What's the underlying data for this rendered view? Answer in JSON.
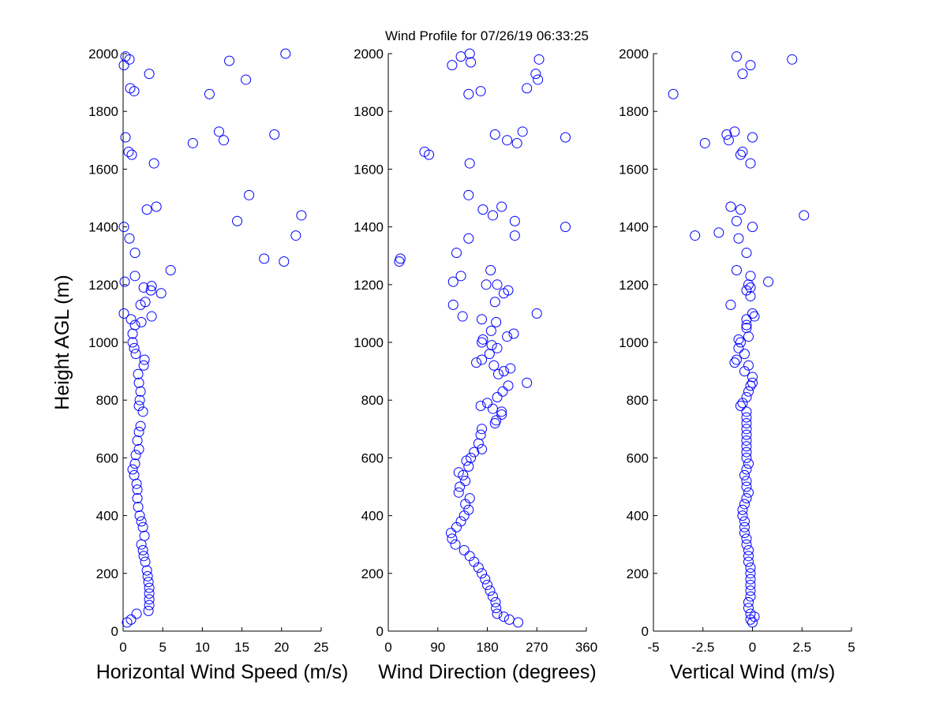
{
  "title": "Wind Profile for  07/26/19 06:33:25",
  "colors": {
    "marker": "#0000ff",
    "axis": "#000000",
    "background": "#ffffff"
  },
  "chart_data": [
    {
      "id": "speed",
      "type": "scatter",
      "xlabel": "Horizontal Wind Speed (m/s)",
      "ylabel": "Height AGL (m)",
      "xlim": [
        0,
        25
      ],
      "ylim": [
        0,
        2000
      ],
      "xticks": [
        0,
        5,
        10,
        15,
        20,
        25
      ],
      "xtick_labels": [
        "0",
        "5",
        "10",
        "15",
        "20",
        "25"
      ],
      "yticks": [
        0,
        200,
        400,
        600,
        800,
        1000,
        1200,
        1400,
        1600,
        1800,
        2000
      ],
      "ytick_labels": [
        "0",
        "200",
        "400",
        "600",
        "800",
        "1000",
        "1200",
        "1400",
        "1600",
        "1800",
        "2000"
      ],
      "grid": false,
      "points": [
        [
          0.5,
          30
        ],
        [
          1.0,
          40
        ],
        [
          1.7,
          60
        ],
        [
          3.2,
          70
        ],
        [
          3.3,
          90
        ],
        [
          3.3,
          110
        ],
        [
          3.3,
          130
        ],
        [
          3.3,
          150
        ],
        [
          3.2,
          170
        ],
        [
          3.1,
          190
        ],
        [
          3.0,
          210
        ],
        [
          2.8,
          240
        ],
        [
          2.6,
          260
        ],
        [
          2.5,
          280
        ],
        [
          2.3,
          300
        ],
        [
          2.7,
          330
        ],
        [
          2.5,
          360
        ],
        [
          2.3,
          380
        ],
        [
          2.1,
          400
        ],
        [
          1.9,
          430
        ],
        [
          1.8,
          460
        ],
        [
          1.8,
          490
        ],
        [
          1.7,
          510
        ],
        [
          1.4,
          540
        ],
        [
          1.2,
          560
        ],
        [
          1.5,
          580
        ],
        [
          1.6,
          610
        ],
        [
          2.0,
          630
        ],
        [
          1.8,
          660
        ],
        [
          2.0,
          690
        ],
        [
          2.2,
          710
        ],
        [
          2.5,
          760
        ],
        [
          2.0,
          780
        ],
        [
          2.1,
          800
        ],
        [
          2.2,
          830
        ],
        [
          2.0,
          860
        ],
        [
          1.9,
          890
        ],
        [
          2.6,
          920
        ],
        [
          2.7,
          940
        ],
        [
          1.6,
          960
        ],
        [
          1.4,
          980
        ],
        [
          1.2,
          1000
        ],
        [
          1.2,
          1030
        ],
        [
          1.5,
          1060
        ],
        [
          2.3,
          1070
        ],
        [
          1.0,
          1080
        ],
        [
          3.6,
          1090
        ],
        [
          0.1,
          1100
        ],
        [
          2.8,
          1140
        ],
        [
          2.2,
          1130
        ],
        [
          4.8,
          1170
        ],
        [
          3.5,
          1180
        ],
        [
          2.6,
          1190
        ],
        [
          3.6,
          1195
        ],
        [
          0.2,
          1210
        ],
        [
          1.5,
          1230
        ],
        [
          6.0,
          1250
        ],
        [
          20.3,
          1280
        ],
        [
          17.8,
          1290
        ],
        [
          1.5,
          1310
        ],
        [
          0.8,
          1360
        ],
        [
          21.8,
          1370
        ],
        [
          0.1,
          1400
        ],
        [
          14.4,
          1420
        ],
        [
          22.5,
          1440
        ],
        [
          3.0,
          1460
        ],
        [
          4.2,
          1470
        ],
        [
          15.9,
          1510
        ],
        [
          3.9,
          1620
        ],
        [
          1.1,
          1650
        ],
        [
          0.7,
          1660
        ],
        [
          8.8,
          1690
        ],
        [
          12.7,
          1700
        ],
        [
          0.3,
          1710
        ],
        [
          19.1,
          1720
        ],
        [
          12.1,
          1730
        ],
        [
          10.9,
          1860
        ],
        [
          1.4,
          1870
        ],
        [
          0.9,
          1880
        ],
        [
          15.5,
          1910
        ],
        [
          3.3,
          1930
        ],
        [
          0.1,
          1960
        ],
        [
          13.4,
          1975
        ],
        [
          0.8,
          1980
        ],
        [
          0.3,
          1990
        ],
        [
          20.5,
          2000
        ]
      ]
    },
    {
      "id": "direction",
      "type": "scatter",
      "xlabel": "Wind Direction (degrees)",
      "ylabel": "",
      "xlim": [
        0,
        360
      ],
      "ylim": [
        0,
        2000
      ],
      "xticks": [
        0,
        90,
        180,
        270,
        360
      ],
      "xtick_labels": [
        "0",
        "90",
        "180",
        "270",
        "360"
      ],
      "yticks": [
        0,
        200,
        400,
        600,
        800,
        1000,
        1200,
        1400,
        1600,
        1800,
        2000
      ],
      "ytick_labels": [
        "0",
        "200",
        "400",
        "600",
        "800",
        "1000",
        "1200",
        "1400",
        "1600",
        "1800",
        "2000"
      ],
      "grid": false,
      "points": [
        [
          236,
          30
        ],
        [
          220,
          40
        ],
        [
          210,
          50
        ],
        [
          198,
          60
        ],
        [
          196,
          80
        ],
        [
          195,
          100
        ],
        [
          190,
          120
        ],
        [
          185,
          140
        ],
        [
          180,
          160
        ],
        [
          176,
          180
        ],
        [
          170,
          200
        ],
        [
          164,
          220
        ],
        [
          156,
          240
        ],
        [
          148,
          260
        ],
        [
          138,
          280
        ],
        [
          122,
          300
        ],
        [
          116,
          320
        ],
        [
          114,
          340
        ],
        [
          124,
          360
        ],
        [
          132,
          380
        ],
        [
          138,
          400
        ],
        [
          146,
          420
        ],
        [
          140,
          440
        ],
        [
          148,
          460
        ],
        [
          128,
          480
        ],
        [
          130,
          500
        ],
        [
          140,
          520
        ],
        [
          136,
          540
        ],
        [
          128,
          550
        ],
        [
          146,
          570
        ],
        [
          142,
          590
        ],
        [
          150,
          600
        ],
        [
          156,
          620
        ],
        [
          170,
          630
        ],
        [
          164,
          650
        ],
        [
          168,
          680
        ],
        [
          170,
          700
        ],
        [
          194,
          720
        ],
        [
          196,
          730
        ],
        [
          206,
          750
        ],
        [
          206,
          760
        ],
        [
          190,
          770
        ],
        [
          168,
          780
        ],
        [
          180,
          790
        ],
        [
          198,
          810
        ],
        [
          208,
          830
        ],
        [
          218,
          850
        ],
        [
          252,
          860
        ],
        [
          200,
          890
        ],
        [
          210,
          900
        ],
        [
          222,
          910
        ],
        [
          192,
          920
        ],
        [
          160,
          930
        ],
        [
          170,
          940
        ],
        [
          184,
          960
        ],
        [
          198,
          980
        ],
        [
          188,
          990
        ],
        [
          170,
          1000
        ],
        [
          172,
          1010
        ],
        [
          216,
          1020
        ],
        [
          228,
          1030
        ],
        [
          187,
          1040
        ],
        [
          196,
          1070
        ],
        [
          170,
          1080
        ],
        [
          270,
          1100
        ],
        [
          135,
          1090
        ],
        [
          118,
          1130
        ],
        [
          194,
          1140
        ],
        [
          218,
          1180
        ],
        [
          210,
          1170
        ],
        [
          178,
          1200
        ],
        [
          198,
          1200
        ],
        [
          118,
          1210
        ],
        [
          132,
          1230
        ],
        [
          186,
          1250
        ],
        [
          20,
          1280
        ],
        [
          22,
          1290
        ],
        [
          124,
          1310
        ],
        [
          146,
          1360
        ],
        [
          230,
          1370
        ],
        [
          322,
          1400
        ],
        [
          230,
          1420
        ],
        [
          190,
          1440
        ],
        [
          172,
          1460
        ],
        [
          206,
          1470
        ],
        [
          146,
          1510
        ],
        [
          148,
          1620
        ],
        [
          74,
          1650
        ],
        [
          66,
          1660
        ],
        [
          234,
          1690
        ],
        [
          216,
          1700
        ],
        [
          322,
          1710
        ],
        [
          194,
          1720
        ],
        [
          244,
          1730
        ],
        [
          146,
          1860
        ],
        [
          168,
          1870
        ],
        [
          252,
          1880
        ],
        [
          272,
          1910
        ],
        [
          268,
          1930
        ],
        [
          116,
          1960
        ],
        [
          150,
          1970
        ],
        [
          274,
          1980
        ],
        [
          132,
          1990
        ],
        [
          148,
          2000
        ]
      ]
    },
    {
      "id": "vertical",
      "type": "scatter",
      "xlabel": "Vertical Wind (m/s)",
      "ylabel": "",
      "xlim": [
        -5,
        5
      ],
      "ylim": [
        0,
        2000
      ],
      "xticks": [
        -5,
        -2.5,
        0,
        2.5,
        5
      ],
      "xtick_labels": [
        "-5",
        "-2.5",
        "0",
        "2.5",
        "5"
      ],
      "yticks": [
        0,
        200,
        400,
        600,
        800,
        1000,
        1200,
        1400,
        1600,
        1800,
        2000
      ],
      "ytick_labels": [
        "0",
        "200",
        "400",
        "600",
        "800",
        "1000",
        "1200",
        "1400",
        "1600",
        "1800",
        "2000"
      ],
      "grid": false,
      "points": [
        [
          0.0,
          30
        ],
        [
          -0.1,
          40
        ],
        [
          0.1,
          50
        ],
        [
          -0.1,
          60
        ],
        [
          -0.2,
          80
        ],
        [
          -0.2,
          100
        ],
        [
          -0.1,
          120
        ],
        [
          -0.1,
          140
        ],
        [
          -0.1,
          160
        ],
        [
          -0.1,
          180
        ],
        [
          -0.1,
          200
        ],
        [
          -0.1,
          220
        ],
        [
          -0.2,
          240
        ],
        [
          -0.2,
          260
        ],
        [
          -0.2,
          280
        ],
        [
          -0.3,
          300
        ],
        [
          -0.3,
          320
        ],
        [
          -0.4,
          340
        ],
        [
          -0.4,
          360
        ],
        [
          -0.4,
          380
        ],
        [
          -0.5,
          400
        ],
        [
          -0.5,
          420
        ],
        [
          -0.4,
          440
        ],
        [
          -0.3,
          460
        ],
        [
          -0.2,
          480
        ],
        [
          -0.3,
          500
        ],
        [
          -0.3,
          520
        ],
        [
          -0.4,
          540
        ],
        [
          -0.3,
          560
        ],
        [
          -0.2,
          580
        ],
        [
          -0.3,
          600
        ],
        [
          -0.3,
          620
        ],
        [
          -0.3,
          640
        ],
        [
          -0.3,
          660
        ],
        [
          -0.3,
          680
        ],
        [
          -0.3,
          700
        ],
        [
          -0.3,
          720
        ],
        [
          -0.3,
          740
        ],
        [
          -0.3,
          760
        ],
        [
          -0.6,
          780
        ],
        [
          -0.5,
          790
        ],
        [
          -0.3,
          810
        ],
        [
          -0.2,
          830
        ],
        [
          -0.1,
          850
        ],
        [
          0.0,
          860
        ],
        [
          0.0,
          880
        ],
        [
          -0.4,
          900
        ],
        [
          -0.2,
          920
        ],
        [
          -0.9,
          930
        ],
        [
          -0.8,
          940
        ],
        [
          -0.4,
          960
        ],
        [
          -0.7,
          980
        ],
        [
          -0.6,
          1000
        ],
        [
          -0.7,
          1010
        ],
        [
          -0.2,
          1020
        ],
        [
          -0.3,
          1050
        ],
        [
          -0.3,
          1060
        ],
        [
          -0.3,
          1080
        ],
        [
          0.1,
          1090
        ],
        [
          0.0,
          1100
        ],
        [
          -1.1,
          1130
        ],
        [
          -0.1,
          1160
        ],
        [
          -0.3,
          1180
        ],
        [
          -0.1,
          1190
        ],
        [
          -0.2,
          1200
        ],
        [
          0.8,
          1210
        ],
        [
          -0.1,
          1230
        ],
        [
          -0.8,
          1250
        ],
        [
          -0.3,
          1310
        ],
        [
          -0.7,
          1360
        ],
        [
          -2.9,
          1370
        ],
        [
          -1.7,
          1380
        ],
        [
          0.0,
          1400
        ],
        [
          -0.8,
          1420
        ],
        [
          2.6,
          1440
        ],
        [
          -0.6,
          1460
        ],
        [
          -1.1,
          1470
        ],
        [
          -0.1,
          1620
        ],
        [
          -0.6,
          1650
        ],
        [
          -0.5,
          1660
        ],
        [
          -2.4,
          1690
        ],
        [
          -1.2,
          1700
        ],
        [
          0.0,
          1710
        ],
        [
          -1.3,
          1720
        ],
        [
          -0.9,
          1730
        ],
        [
          -4.0,
          1860
        ],
        [
          -0.5,
          1930
        ],
        [
          -0.1,
          1960
        ],
        [
          2.0,
          1980
        ],
        [
          -0.8,
          1990
        ]
      ]
    }
  ]
}
